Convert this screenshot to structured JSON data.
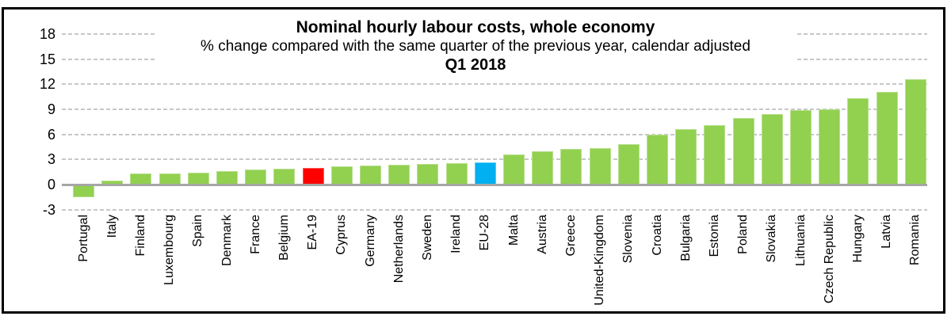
{
  "chart_data": {
    "type": "bar",
    "title": "Nominal hourly labour costs, whole economy",
    "subtitle": "% change compared with the same quarter of the previous year, calendar adjusted",
    "period": "Q1 2018",
    "unit": "%",
    "xlabel": "",
    "ylabel": "",
    "ylim": [
      -3,
      18
    ],
    "yticks": [
      18,
      15,
      12,
      9,
      6,
      3,
      0,
      -3
    ],
    "grid": "horizontal-dashed",
    "legend": "none",
    "categories": [
      "Portugal",
      "Italy",
      "Finland",
      "Luxembourg",
      "Spain",
      "Denmark",
      "France",
      "Belgium",
      "EA-19",
      "Cyprus",
      "Germany",
      "Netherlands",
      "Sweden",
      "Ireland",
      "EU-28",
      "Malta",
      "Austria",
      "Greece",
      "United-Kingdom",
      "Slovenia",
      "Croatia",
      "Bulgaria",
      "Estonia",
      "Poland",
      "Slovakia",
      "Lithuania",
      "Czech Republic",
      "Hungary",
      "Latvia",
      "Romania"
    ],
    "values": [
      -1.5,
      0.5,
      1.3,
      1.3,
      1.4,
      1.6,
      1.8,
      1.9,
      2.0,
      2.2,
      2.3,
      2.4,
      2.5,
      2.6,
      2.7,
      3.6,
      4.0,
      4.3,
      4.4,
      4.8,
      6.0,
      6.6,
      7.1,
      8.0,
      8.4,
      8.9,
      9.0,
      10.3,
      11.1,
      12.6
    ],
    "highlighted_bars": {
      "EA-19": "#ff0000",
      "EU-28": "#00b0f0"
    },
    "colors": {
      "bar_default": "#92d050",
      "bar_ea19": "#ff0000",
      "bar_eu28": "#00b0f0",
      "gridline": "#c7c7c7",
      "zero_line": "#a6a6a6",
      "text": "#000000",
      "frame_border": "#000000",
      "background": "#ffffff"
    }
  }
}
